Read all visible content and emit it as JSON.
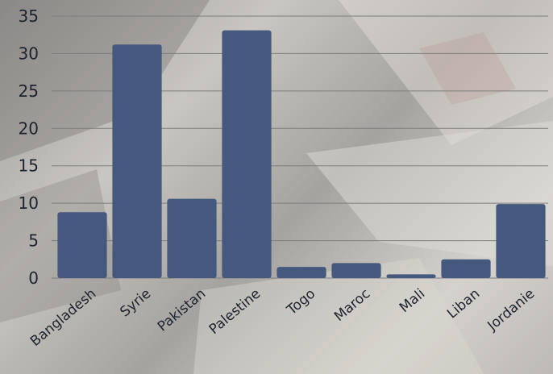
{
  "chart_data": {
    "type": "bar",
    "categories": [
      "Bangladesh",
      "Syrie",
      "Pakistan",
      "Palestine",
      "Togo",
      "Maroc",
      "Mali",
      "Liban",
      "Jordanie"
    ],
    "values": [
      8.8,
      31.2,
      10.6,
      33.1,
      1.5,
      2.0,
      0.5,
      2.5,
      9.9
    ],
    "title": "",
    "xlabel": "",
    "ylabel": "",
    "ylim": [
      0,
      35
    ],
    "yticks": [
      0,
      5,
      10,
      15,
      20,
      25,
      30,
      35
    ],
    "grid": true,
    "bar_color": "#45587e",
    "grid_color": "#7d7d7d"
  }
}
